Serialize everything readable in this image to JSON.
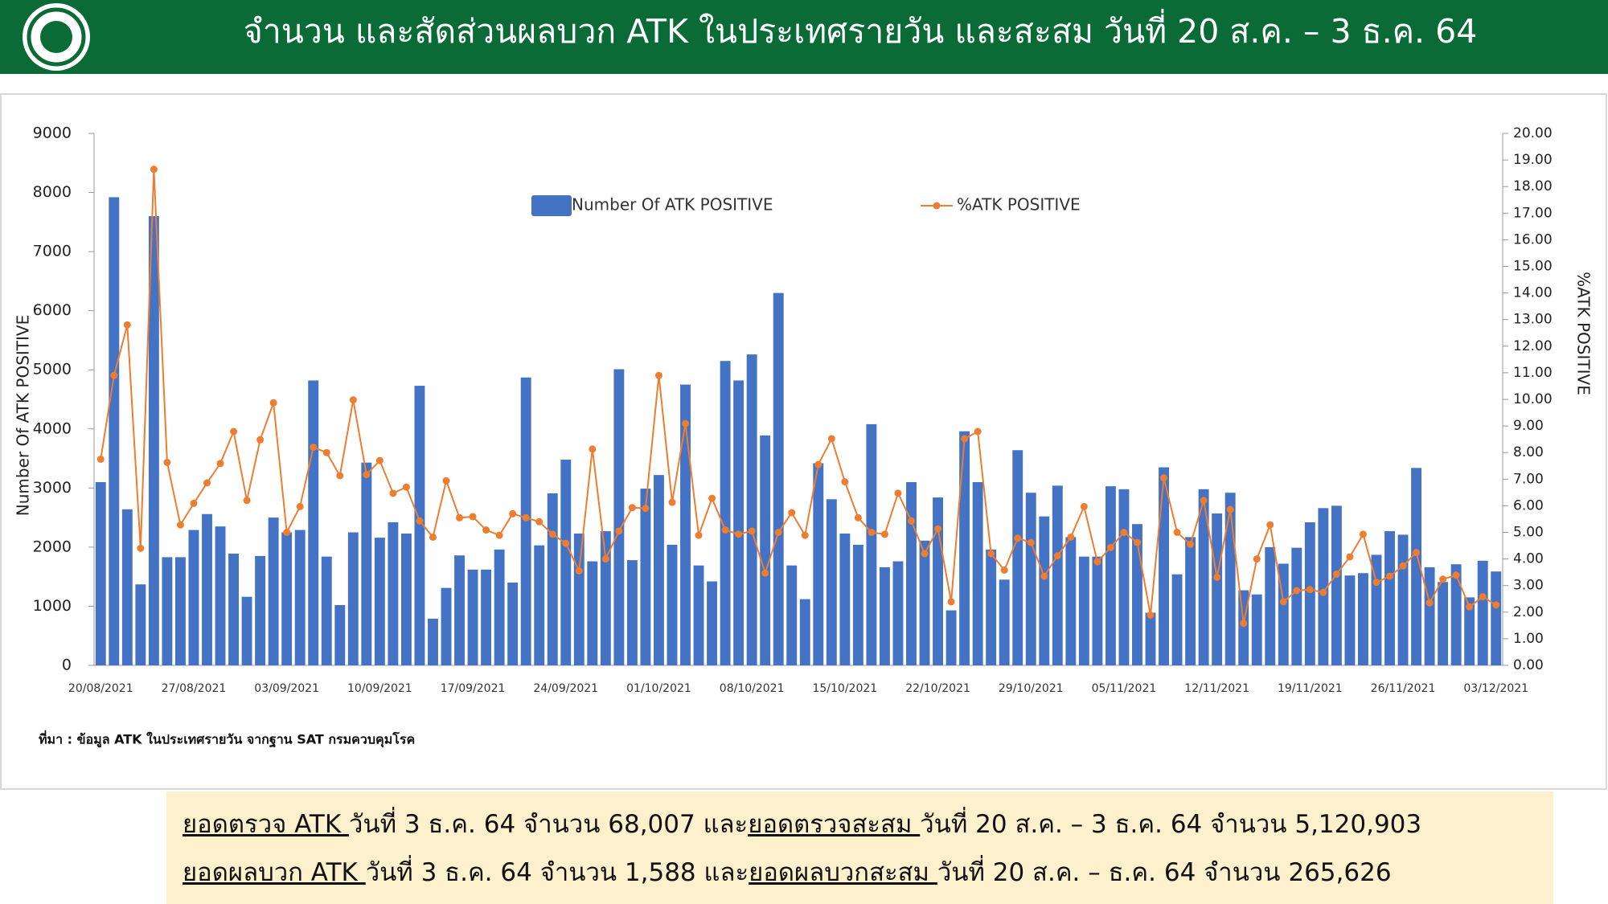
{
  "header": {
    "title": "จำนวน และสัดส่วนผลบวก ATK ในประเทศรายวัน และสะสม วันที่ 20 ส.ค. – 3 ธ.ค. 64"
  },
  "chart_data": {
    "type": "bar-line",
    "ylabel": "Number Of ATK POSITIVE",
    "y2label": "%ATK POSITIVE",
    "categories": [
      "20/08/2021",
      null,
      null,
      null,
      null,
      null,
      null,
      "27/08/2021",
      null,
      null,
      null,
      null,
      null,
      null,
      "03/09/2021",
      null,
      null,
      null,
      null,
      null,
      null,
      "10/09/2021",
      null,
      null,
      null,
      null,
      null,
      null,
      "17/09/2021",
      null,
      null,
      null,
      null,
      null,
      null,
      "24/09/2021",
      null,
      null,
      null,
      null,
      null,
      null,
      "01/10/2021",
      null,
      null,
      null,
      null,
      null,
      null,
      "08/10/2021",
      null,
      null,
      null,
      null,
      null,
      null,
      "15/10/2021",
      null,
      null,
      null,
      null,
      null,
      null,
      "22/10/2021",
      null,
      null,
      null,
      null,
      null,
      null,
      "29/10/2021",
      null,
      null,
      null,
      null,
      null,
      null,
      "05/11/2021",
      null,
      null,
      null,
      null,
      null,
      null,
      "12/11/2021",
      null,
      null,
      null,
      null,
      null,
      null,
      "19/11/2021",
      null,
      null,
      null,
      null,
      null,
      null,
      "26/11/2021",
      null,
      null,
      null,
      null,
      null,
      null,
      "03/12/2021"
    ],
    "series": [
      {
        "name": "Number Of ATK POSITIVE",
        "type": "bar",
        "color": "#4472c4",
        "axis": "y",
        "values": [
          3100,
          7920,
          2640,
          1370,
          7600,
          1830,
          1830,
          2290,
          2560,
          2350,
          1890,
          1160,
          1850,
          2500,
          2250,
          2290,
          4820,
          1840,
          1020,
          2250,
          3430,
          2160,
          2420,
          2230,
          4730,
          790,
          1310,
          1860,
          1620,
          1620,
          1960,
          1400,
          4870,
          2030,
          2910,
          3480,
          2230,
          1760,
          2270,
          5010,
          1780,
          2990,
          3220,
          2040,
          4750,
          1690,
          1420,
          5150,
          4820,
          5260,
          3890,
          6300,
          1690,
          1120,
          3420,
          2810,
          2230,
          2040,
          4080,
          1660,
          1760,
          3100,
          2110,
          2840,
          930,
          3960,
          3100,
          1960,
          1450,
          3640,
          2920,
          2520,
          3040,
          2170,
          1840,
          1840,
          3030,
          2980,
          2390,
          890,
          3350,
          1540,
          2170,
          2980,
          2570,
          2920,
          1270,
          1200,
          2000,
          1720,
          1990,
          2420,
          2660,
          2700,
          1520,
          1560,
          1870,
          2270,
          2210,
          3340,
          1660,
          1410,
          1710,
          1150,
          1770,
          1588
        ]
      },
      {
        "name": "%ATK POSITIVE",
        "type": "line",
        "color": "#ed7d31",
        "axis": "y2",
        "values": [
          7.75,
          10.9,
          12.8,
          4.4,
          18.65,
          7.63,
          5.28,
          6.09,
          6.86,
          7.59,
          8.79,
          6.2,
          8.48,
          9.87,
          5.0,
          5.97,
          8.2,
          8.0,
          7.13,
          9.98,
          7.17,
          7.7,
          6.47,
          6.7,
          5.43,
          4.82,
          6.94,
          5.55,
          5.59,
          5.09,
          4.89,
          5.7,
          5.55,
          5.4,
          4.93,
          4.59,
          3.55,
          8.13,
          4.0,
          5.05,
          5.93,
          5.9,
          10.9,
          6.13,
          9.09,
          4.89,
          6.28,
          5.09,
          4.93,
          5.05,
          3.47,
          5.0,
          5.74,
          4.89,
          7.55,
          8.52,
          6.9,
          5.55,
          5.0,
          4.93,
          6.47,
          5.43,
          4.2,
          5.13,
          2.39,
          8.52,
          8.79,
          4.2,
          3.58,
          4.78,
          4.62,
          3.35,
          4.12,
          4.82,
          5.97,
          3.89,
          4.43,
          5.0,
          4.62,
          1.89,
          7.05,
          5.0,
          4.55,
          6.2,
          3.31,
          5.86,
          1.58,
          4.0,
          5.28,
          2.39,
          2.81,
          2.85,
          2.74,
          3.43,
          4.08,
          4.93,
          3.12,
          3.35,
          3.74,
          4.24,
          2.35,
          3.24,
          3.39,
          2.2,
          2.58,
          2.27
        ]
      }
    ],
    "ylim": [
      0,
      9000
    ],
    "yticks": [
      0,
      1000,
      2000,
      3000,
      4000,
      5000,
      6000,
      7000,
      8000,
      9000
    ],
    "y2lim": [
      0,
      20
    ],
    "y2ticks": [
      {
        "value": 0,
        "label": "0.00"
      },
      {
        "value": 1,
        "label": "1.00"
      },
      {
        "value": 2,
        "label": "2.00"
      },
      {
        "value": 3,
        "label": "3.00"
      },
      {
        "value": 4,
        "label": "4.00"
      },
      {
        "value": 5,
        "label": "5.00"
      },
      {
        "value": 6,
        "label": "6.00"
      },
      {
        "value": 7,
        "label": "7.00"
      },
      {
        "value": 8,
        "label": "8.00"
      },
      {
        "value": 9,
        "label": "9.00"
      },
      {
        "value": 10,
        "label": "10.00"
      },
      {
        "value": 11,
        "label": "11.00"
      },
      {
        "value": 12,
        "label": "12.00"
      },
      {
        "value": 13,
        "label": "13.00"
      },
      {
        "value": 14,
        "label": "14.00"
      },
      {
        "value": 15,
        "label": "15.00"
      },
      {
        "value": 16,
        "label": "16.00"
      },
      {
        "value": 17,
        "label": "17.00"
      },
      {
        "value": 18,
        "label": "18.00"
      },
      {
        "value": 19,
        "label": "19.00"
      },
      {
        "value": 20,
        "label": "20.00"
      }
    ],
    "grid": false
  },
  "source": "ที่มา : ข้อมูล ATK ในประเทศรายวัน จากฐาน SAT กรมควบคุมโรค",
  "footer": {
    "lines": [
      [
        "ยอดตรวจ ATK ",
        "วันที่ 3 ธ.ค. 64 จำนวน 68,007 และ",
        "ยอดตรวจสะสม ",
        "วันที่ 20 ส.ค. – 3 ธ.ค. 64 จำนวน 5,120,903"
      ],
      [
        "ยอดผลบวก ATK ",
        "วันที่ 3 ธ.ค. 64 จำนวน 1,588 และ",
        "ยอดผลบวกสะสม ",
        "วันที่ 20 ส.ค. –  ธ.ค. 64 จำนวน 265,626"
      ]
    ]
  }
}
